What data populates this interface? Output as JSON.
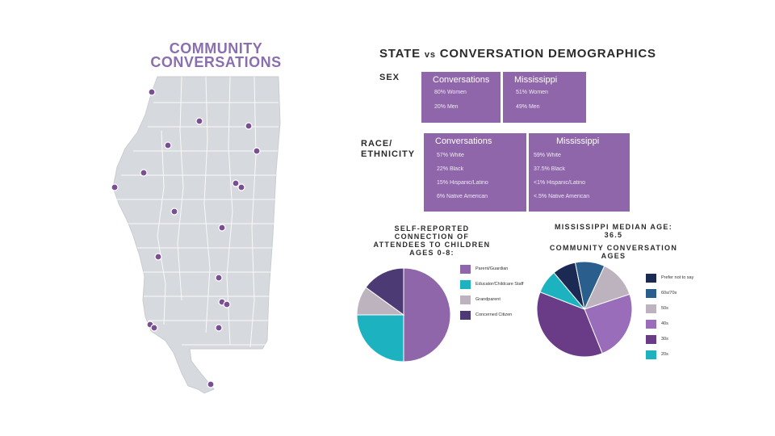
{
  "brand": {
    "line1": "COMMUNITY",
    "line2": "CONVERSATIONS"
  },
  "title": {
    "part1": "STATE",
    "vs": "vs",
    "part2": "CONVERSATION DEMOGRAPHICS"
  },
  "sex": {
    "label": "SEX",
    "conversations": {
      "heading": "Conversations",
      "lines": [
        "80% Women",
        "20% Men"
      ]
    },
    "mississippi": {
      "heading": "Mississippi",
      "lines": [
        "51% Women",
        "49% Men"
      ]
    }
  },
  "race": {
    "label_line1": "RACE/",
    "label_line2": "ETHNICITY",
    "conversations": {
      "heading": "Conversations",
      "lines": [
        "57% White",
        "22% Black",
        "15% Hispanic/Latino",
        "6% Native American"
      ]
    },
    "mississippi": {
      "heading": "Mississippi",
      "lines": [
        "59% White",
        "37.5% Black",
        "<1% Hispanic/Latino",
        "<.5% Native American"
      ]
    }
  },
  "colors": {
    "brand": "#8a6fae",
    "box": "#8f66aa",
    "map_fill": "#d6d9dd",
    "map_line": "#ffffff",
    "dot": "#7a4f92"
  },
  "chart_data": [
    {
      "type": "pie",
      "title_lines": [
        "SELF-REPORTED",
        "CONNECTION OF",
        "ATTENDEES TO CHILDREN",
        "AGES 0-8:"
      ],
      "categories": [
        "Parent/Guardian",
        "Educator/Childcare Staff",
        "Grandparent",
        "Concerned Citizen"
      ],
      "values": [
        50,
        25,
        10,
        15
      ],
      "colors": [
        "#8f66aa",
        "#1cb2bf",
        "#bdb3bf",
        "#4c3a74"
      ],
      "legend": "right"
    },
    {
      "type": "pie",
      "title_lines": [
        "MISSISSIPPI MEDIAN AGE:",
        "36.5",
        "COMMUNITY CONVERSATION",
        "AGES"
      ],
      "categories": [
        "Prefer not to say",
        "60s/70s",
        "50s",
        "40s",
        "30s",
        "20s"
      ],
      "values": [
        8,
        10,
        13,
        24,
        37,
        8
      ],
      "colors": [
        "#1b2a53",
        "#2a5e8c",
        "#bdb3bf",
        "#9a6dbb",
        "#6a3b86",
        "#1cb2bf"
      ],
      "legend": "right"
    }
  ]
}
